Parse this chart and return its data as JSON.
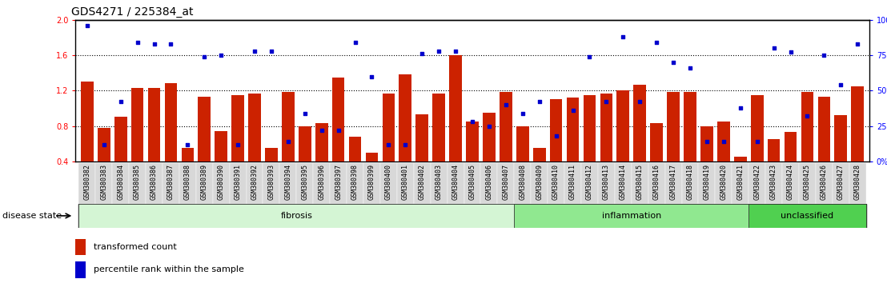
{
  "title": "GDS4271 / 225384_at",
  "samples": [
    "GSM380382",
    "GSM380383",
    "GSM380384",
    "GSM380385",
    "GSM380386",
    "GSM380387",
    "GSM380388",
    "GSM380389",
    "GSM380390",
    "GSM380391",
    "GSM380392",
    "GSM380393",
    "GSM380394",
    "GSM380395",
    "GSM380396",
    "GSM380397",
    "GSM380398",
    "GSM380399",
    "GSM380400",
    "GSM380401",
    "GSM380402",
    "GSM380403",
    "GSM380404",
    "GSM380405",
    "GSM380406",
    "GSM380407",
    "GSM380408",
    "GSM380409",
    "GSM380410",
    "GSM380411",
    "GSM380412",
    "GSM380413",
    "GSM380414",
    "GSM380415",
    "GSM380416",
    "GSM380417",
    "GSM380418",
    "GSM380419",
    "GSM380420",
    "GSM380421",
    "GSM380422",
    "GSM380423",
    "GSM380424",
    "GSM380425",
    "GSM380426",
    "GSM380427",
    "GSM380428"
  ],
  "bar_values": [
    1.3,
    0.78,
    0.9,
    1.23,
    1.23,
    1.28,
    0.55,
    1.13,
    0.74,
    1.15,
    1.17,
    0.55,
    1.18,
    0.8,
    0.83,
    1.35,
    0.68,
    0.5,
    1.17,
    1.38,
    0.93,
    1.17,
    1.6,
    0.85,
    0.95,
    1.18,
    0.8,
    0.55,
    1.1,
    1.12,
    1.15,
    1.17,
    1.2,
    1.27,
    0.83,
    1.18,
    1.18,
    0.8,
    0.85,
    0.45,
    1.15,
    0.65,
    0.73,
    1.18,
    1.13,
    0.92,
    1.25
  ],
  "dot_values_pct": [
    96,
    12,
    42,
    84,
    83,
    83,
    12,
    74,
    75,
    12,
    78,
    78,
    14,
    34,
    22,
    22,
    84,
    60,
    12,
    12,
    76,
    78,
    78,
    28,
    25,
    40,
    34,
    42,
    18,
    36,
    74,
    42,
    88,
    42,
    84,
    70,
    66,
    14,
    14,
    38,
    14,
    80,
    77,
    32,
    75,
    54,
    83
  ],
  "groups": [
    {
      "label": "fibrosis",
      "start": 0,
      "end": 26,
      "color": "#d4f5d4"
    },
    {
      "label": "inflammation",
      "start": 26,
      "end": 40,
      "color": "#90e890"
    },
    {
      "label": "unclassified",
      "start": 40,
      "end": 47,
      "color": "#50d050"
    }
  ],
  "bar_color": "#cc2200",
  "dot_color": "#0000cc",
  "ylim_left": [
    0.4,
    2.0
  ],
  "ylim_right": [
    0,
    100
  ],
  "yticks_left": [
    0.4,
    0.8,
    1.2,
    1.6,
    2.0
  ],
  "yticks_right": [
    0,
    25,
    50,
    75,
    100
  ],
  "hlines": [
    0.8,
    1.2,
    1.6
  ],
  "bg_color": "#ffffff",
  "xtick_bg": "#d8d8d8",
  "title_fontsize": 10,
  "tick_fontsize": 6,
  "label_fontsize": 8
}
